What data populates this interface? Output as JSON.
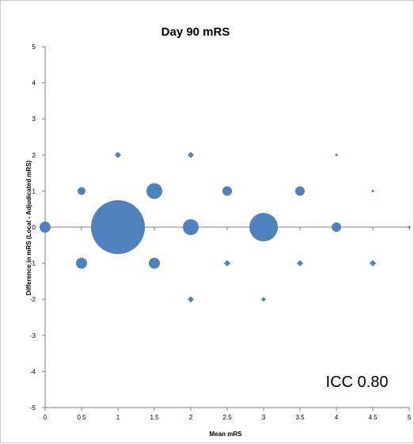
{
  "chart_data": {
    "type": "scatter",
    "title": "Day 90 mRS",
    "xlabel": "Mean mRS",
    "ylabel": "Difference in mRS (Local - Adjudicated mRS)",
    "xlim": [
      0,
      5
    ],
    "ylim": [
      -5,
      5
    ],
    "x_ticks": [
      "0",
      "0.5",
      "1",
      "1.5",
      "2",
      "2.5",
      "3",
      "3.5",
      "4",
      "4.5",
      "5"
    ],
    "y_ticks": [
      "5",
      "4",
      "3",
      "2",
      "1",
      "0",
      "-1",
      "-2",
      "-3",
      "-4",
      "-5"
    ],
    "annotation": "ICC 0.80",
    "color": "#4f81bd",
    "grid": false,
    "bubbles": [
      {
        "x": 0,
        "y": 0,
        "size": 7
      },
      {
        "x": 0.5,
        "y": 1,
        "size": 5
      },
      {
        "x": 0.5,
        "y": -1,
        "size": 7
      },
      {
        "x": 1,
        "y": 2,
        "size": 4,
        "marker": "diamond"
      },
      {
        "x": 1,
        "y": 0,
        "size": 34
      },
      {
        "x": 1.5,
        "y": 1,
        "size": 10
      },
      {
        "x": 1.5,
        "y": -1,
        "size": 7
      },
      {
        "x": 2,
        "y": 2,
        "size": 4,
        "marker": "diamond"
      },
      {
        "x": 2,
        "y": 0,
        "size": 10
      },
      {
        "x": 2,
        "y": -2,
        "size": 4,
        "marker": "diamond"
      },
      {
        "x": 2.5,
        "y": 1,
        "size": 6
      },
      {
        "x": 2.5,
        "y": -1,
        "size": 4,
        "marker": "diamond"
      },
      {
        "x": 3,
        "y": 0,
        "size": 18
      },
      {
        "x": 3,
        "y": -2,
        "size": 3,
        "marker": "diamond"
      },
      {
        "x": 3.5,
        "y": 1,
        "size": 6
      },
      {
        "x": 3.5,
        "y": -1,
        "size": 4,
        "marker": "diamond"
      },
      {
        "x": 4,
        "y": 2,
        "size": 2,
        "marker": "diamond"
      },
      {
        "x": 4,
        "y": 0,
        "size": 6
      },
      {
        "x": 4.5,
        "y": 1,
        "size": 2,
        "marker": "diamond"
      },
      {
        "x": 4.5,
        "y": -1,
        "size": 4,
        "marker": "diamond"
      },
      {
        "x": 5,
        "y": 0,
        "size": 2,
        "marker": "diamond"
      }
    ]
  }
}
